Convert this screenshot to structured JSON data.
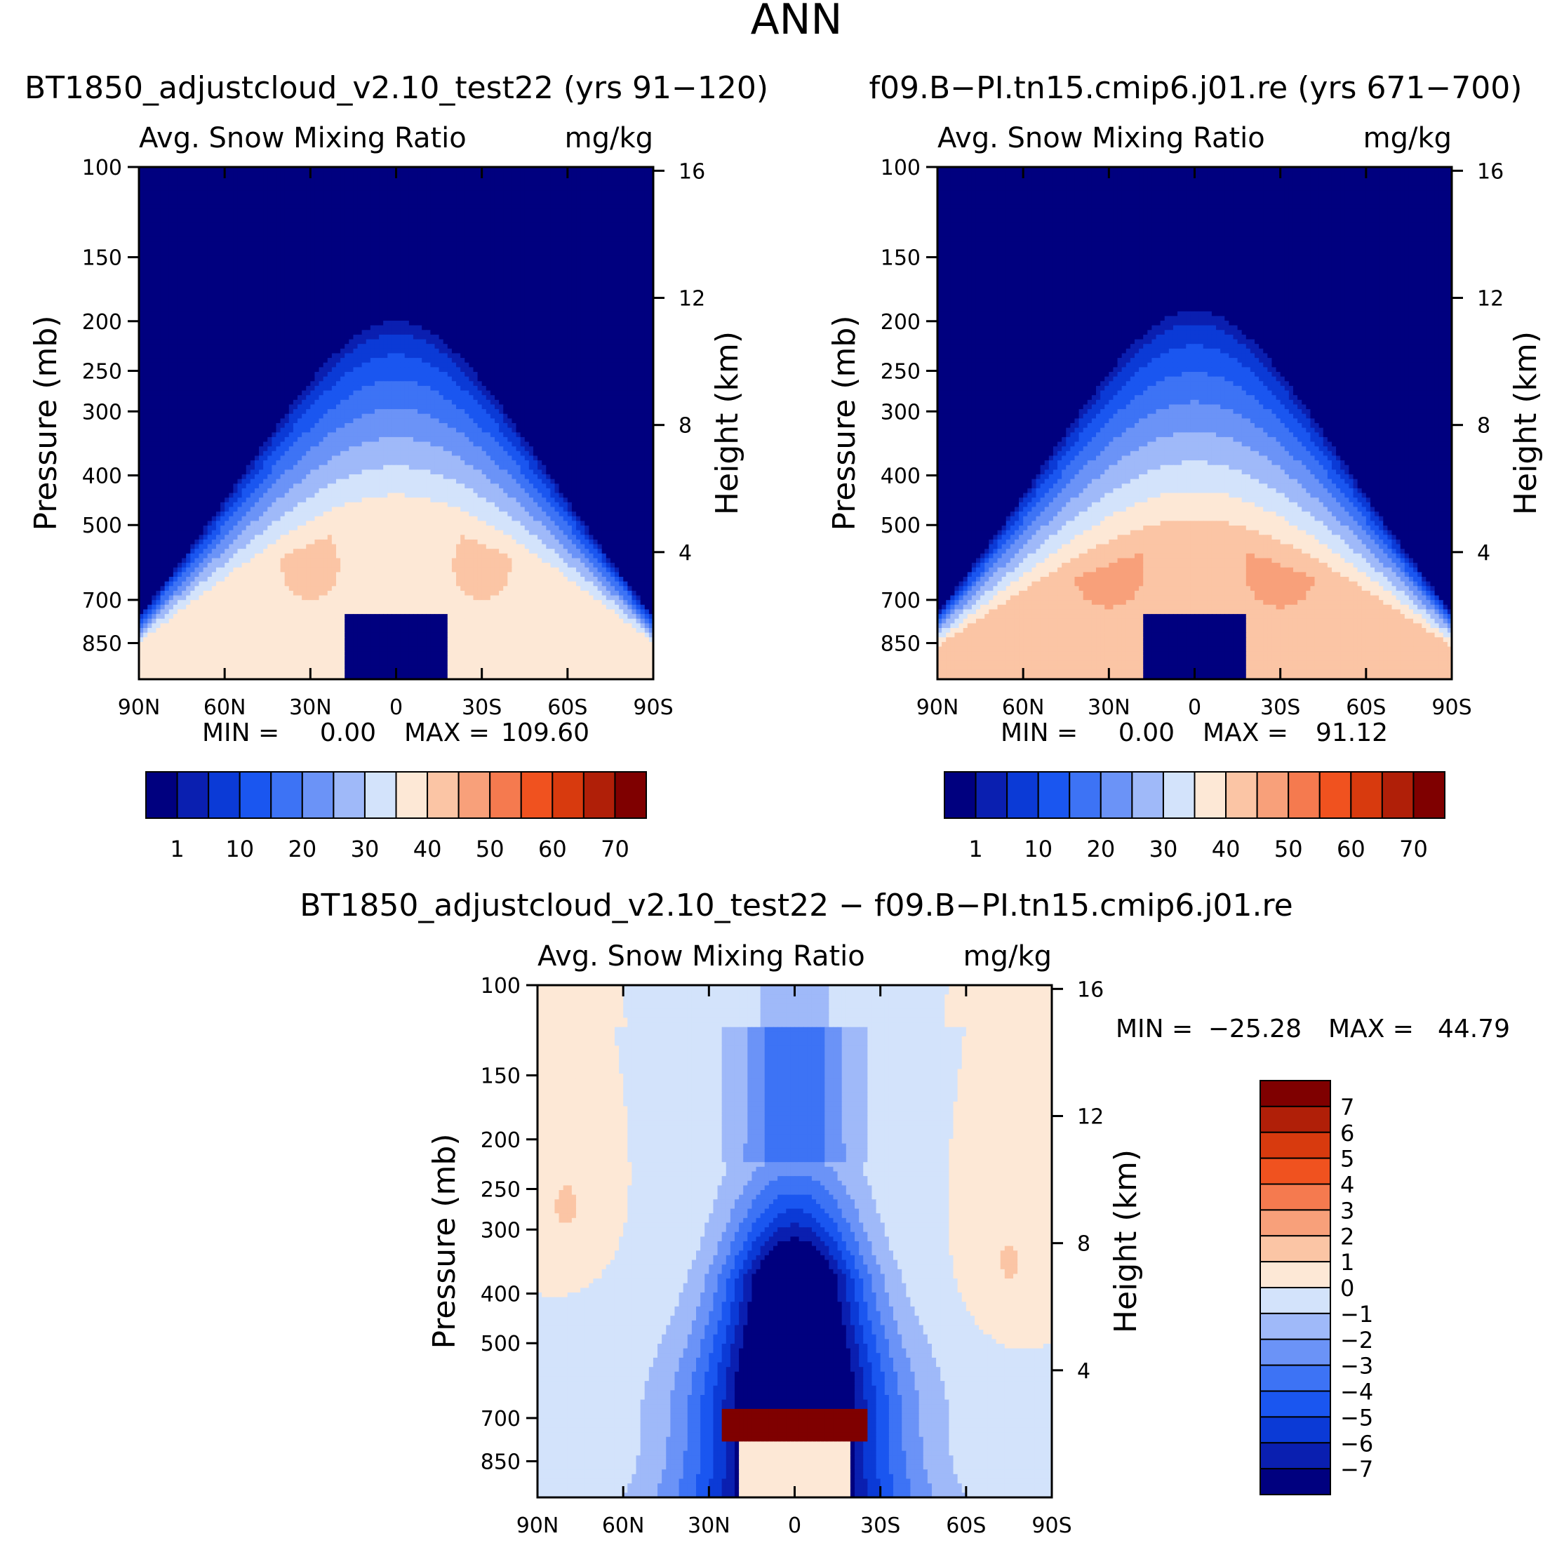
{
  "figure": {
    "title": "ANN"
  },
  "colors": {
    "seq_palette": [
      "#00007f",
      "#0a1fb0",
      "#0b3ad6",
      "#1a56f0",
      "#3d73f5",
      "#6b93f7",
      "#9fb9f9",
      "#d3e3fb",
      "#fde8d6",
      "#fbc5a5",
      "#f8a07a",
      "#f57a4f",
      "#f0521f",
      "#d83a0e",
      "#b01f08",
      "#7f0000"
    ],
    "diff_palette": [
      "#00007f",
      "#0a1fb0",
      "#0b3ad6",
      "#1a56f0",
      "#3d73f5",
      "#6b93f7",
      "#9fb9f9",
      "#d3e3fb",
      "#fde8d6",
      "#fbc5a5",
      "#f8a07a",
      "#f57a4f",
      "#f0521f",
      "#d83a0e",
      "#b01f08",
      "#7f0000"
    ]
  },
  "chart_data": [
    {
      "type": "heatmap",
      "title": "BT1850_adjustcloud_v2.10_test22 (yrs 91-120)",
      "subtitle_left": "Avg. Snow Mixing Ratio",
      "subtitle_right": "mg/kg",
      "ylabel": "Pressure (mb)",
      "y2label": "Height (km)",
      "xticks": [
        "90N",
        "60N",
        "30N",
        "0",
        "30S",
        "60S",
        "90S"
      ],
      "yticks": [
        100,
        150,
        200,
        250,
        300,
        400,
        500,
        700,
        850
      ],
      "y2ticks": [
        16,
        12,
        8,
        4
      ],
      "stats": {
        "min_label": "MIN =",
        "min": "0.00",
        "max_label": "MAX =",
        "max": "109.60"
      },
      "colorbar": {
        "labels": [
          "1",
          "10",
          "20",
          "30",
          "40",
          "50",
          "60",
          "70"
        ],
        "orientation": "horizontal"
      },
      "field": {
        "peak": 8.6,
        "ridge_top": 200,
        "cap": true
      }
    },
    {
      "type": "heatmap",
      "title": "f09.B-PI.tn15.cmip6.j01.re (yrs 671-700)",
      "subtitle_left": "Avg. Snow Mixing Ratio",
      "subtitle_right": "mg/kg",
      "ylabel": "Pressure (mb)",
      "y2label": "Height (km)",
      "xticks": [
        "90N",
        "60N",
        "30N",
        "0",
        "30S",
        "60S",
        "90S"
      ],
      "yticks": [
        100,
        150,
        200,
        250,
        300,
        400,
        500,
        700,
        850
      ],
      "y2ticks": [
        16,
        12,
        8,
        4
      ],
      "stats": {
        "min_label": "MIN =",
        "min": "0.00",
        "max_label": "MAX =",
        "max": "91.12"
      },
      "colorbar": {
        "labels": [
          "1",
          "10",
          "20",
          "30",
          "40",
          "50",
          "60",
          "70"
        ],
        "orientation": "horizontal"
      },
      "field": {
        "peak": 9.2,
        "ridge_top": 190,
        "cap": true
      }
    },
    {
      "type": "heatmap",
      "title": "BT1850_adjustcloud_v2.10_test22 - f09.B-PI.tn15.cmip6.j01.re",
      "subtitle_left": "Avg. Snow Mixing Ratio",
      "subtitle_right": "mg/kg",
      "ylabel": "Pressure (mb)",
      "y2label": "Height (km)",
      "xticks": [
        "90N",
        "60N",
        "30N",
        "0",
        "30S",
        "60S",
        "90S"
      ],
      "yticks": [
        100,
        150,
        200,
        250,
        300,
        400,
        500,
        700,
        850
      ],
      "y2ticks": [
        16,
        12,
        8,
        4
      ],
      "stats": {
        "min_label": "MIN =",
        "min": "-25.28",
        "max_label": "MAX =",
        "max": "44.79"
      },
      "colorbar": {
        "labels": [
          "7",
          "6",
          "5",
          "4",
          "3",
          "2",
          "1",
          "0",
          "-1",
          "-2",
          "-3",
          "-4",
          "-5",
          "-6",
          "-7"
        ],
        "orientation": "vertical"
      },
      "field": {
        "difference": true
      }
    }
  ]
}
